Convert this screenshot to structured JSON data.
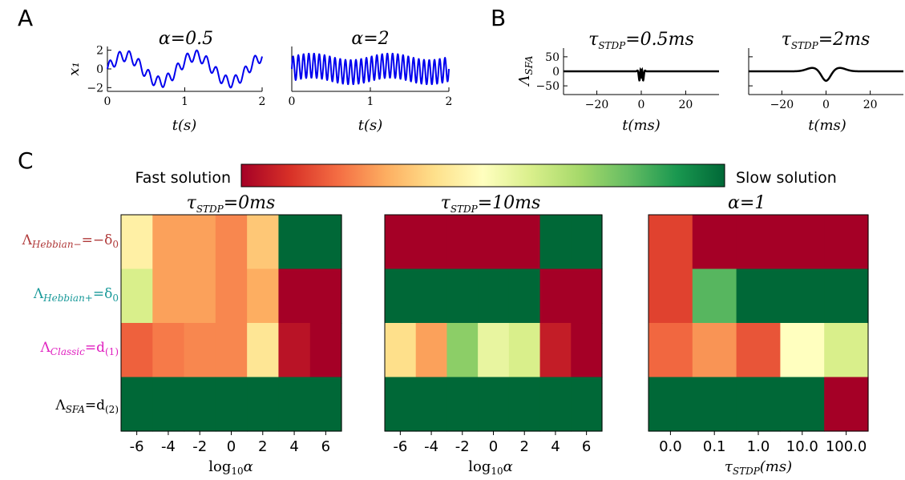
{
  "panels": {
    "A": "A",
    "B": "B",
    "C": "C"
  },
  "colors": {
    "signal": "#0000ee",
    "kernel": "#000000",
    "fast": "#a50026",
    "slow": "#006837"
  },
  "chart_data": [
    {
      "id": "A1",
      "type": "line",
      "title": "α=0.5",
      "xlabel": "t(s)",
      "ylabel": "x₁",
      "xlim": [
        0,
        2
      ],
      "ylim": [
        -2.4,
        2.4
      ],
      "xticks": [
        "0",
        "1",
        "2"
      ],
      "yticks": [
        "2",
        "0",
        "−2"
      ],
      "signal": {
        "slow_amplitude": 1.4,
        "slow_freq_hz": 1.1,
        "fast_amplitude": 0.6,
        "fast_freq_hz": 8
      }
    },
    {
      "id": "A2",
      "type": "line",
      "title": "α=2",
      "xlabel": "t(s)",
      "ylabel": "",
      "xlim": [
        0,
        2
      ],
      "ylim": [
        -2.4,
        2.4
      ],
      "xticks": [
        "0",
        "1",
        "2"
      ],
      "yticks": [],
      "signal": {
        "slow_amplitude": 0.35,
        "slow_freq_hz": 1.0,
        "fast_amplitude": 1.3,
        "fast_freq_hz": 15
      }
    },
    {
      "id": "B1",
      "type": "line",
      "title": "τSTDP=0.5ms",
      "title_main": "τ",
      "title_sub": "STDP",
      "title_rest": "=0.5ms",
      "xlabel": "t(ms)",
      "ylabel": "ΛSFA",
      "ylabel_main": "Λ",
      "ylabel_sub": "SFA",
      "xlim": [
        -35,
        35
      ],
      "ylim": [
        -80,
        80
      ],
      "xticks": [
        "−20",
        "0",
        "20"
      ],
      "yticks": [
        "50",
        "0",
        "−50"
      ],
      "kernel": {
        "tau_ms": 0.5,
        "peak": 70,
        "trough": -80
      }
    },
    {
      "id": "B2",
      "type": "line",
      "title": "τSTDP=2ms",
      "title_main": "τ",
      "title_sub": "STDP",
      "title_rest": "=2ms",
      "xlabel": "t(ms)",
      "ylabel": "",
      "xlim": [
        -35,
        35
      ],
      "ylim": [
        -80,
        80
      ],
      "xticks": [
        "−20",
        "0",
        "20"
      ],
      "yticks": [],
      "kernel": {
        "tau_ms": 2,
        "peak": 12,
        "trough": -34
      }
    },
    {
      "id": "C-colorbar",
      "type": "heatmap",
      "left_label": "Fast solution",
      "right_label": "Slow solution",
      "colormap": "RdYlGn"
    },
    {
      "id": "C1",
      "type": "heatmap",
      "title": "τSTDP=0ms",
      "title_main": "τ",
      "title_sub": "STDP",
      "title_rest": "=0ms",
      "xlabel": "log10α",
      "xlabel_main": "log",
      "xlabel_sub": "10",
      "xlabel_rest": "α",
      "xticks": [
        "-6",
        "-4",
        "-2",
        "0",
        "2",
        "4",
        "6"
      ],
      "cols": 7,
      "rows": [
        [
          0.45,
          0.28,
          0.28,
          0.24,
          0.35,
          1.0,
          1.0
        ],
        [
          0.6,
          0.28,
          0.28,
          0.24,
          0.3,
          0.0,
          0.0
        ],
        [
          0.18,
          0.22,
          0.24,
          0.24,
          0.42,
          0.04,
          0.0
        ],
        [
          1.0,
          1.0,
          1.0,
          1.0,
          1.0,
          1.0,
          1.0
        ]
      ]
    },
    {
      "id": "C2",
      "type": "heatmap",
      "title": "τSTDP=10ms",
      "title_main": "τ",
      "title_sub": "STDP",
      "title_rest": "=10ms",
      "xlabel": "log10α",
      "xlabel_main": "log",
      "xlabel_sub": "10",
      "xlabel_rest": "α",
      "xticks": [
        "-6",
        "-4",
        "-2",
        "0",
        "2",
        "4",
        "6"
      ],
      "cols": 7,
      "rows": [
        [
          0.0,
          0.0,
          0.0,
          0.0,
          0.0,
          1.0,
          1.0
        ],
        [
          1.0,
          1.0,
          1.0,
          1.0,
          1.0,
          0.0,
          0.0
        ],
        [
          0.4,
          0.28,
          0.74,
          0.56,
          0.6,
          0.06,
          0.0
        ],
        [
          1.0,
          1.0,
          1.0,
          1.0,
          1.0,
          1.0,
          1.0
        ]
      ]
    },
    {
      "id": "C3",
      "type": "heatmap",
      "title": "α=1",
      "xlabel": "τSTDP(ms)",
      "xlabel_main": "τ",
      "xlabel_sub": "STDP",
      "xlabel_rest": "(ms)",
      "xticks": [
        "0.0",
        "0.1",
        "1.0",
        "10.0",
        "100.0"
      ],
      "cols": 5,
      "rows": [
        [
          0.13,
          0.0,
          0.0,
          0.0,
          0.0
        ],
        [
          0.13,
          0.82,
          1.0,
          1.0,
          1.0
        ],
        [
          0.19,
          0.26,
          0.16,
          0.5,
          0.6
        ],
        [
          1.0,
          1.0,
          1.0,
          1.0,
          0.0
        ]
      ]
    }
  ],
  "row_labels": [
    {
      "main": "Λ",
      "sub": "Hebbian−",
      "rest": "=−δ",
      "rest_sub": "0",
      "color": "#b03a3a"
    },
    {
      "main": "Λ",
      "sub": "Hebbian+",
      "rest": "=δ",
      "rest_sub": "0",
      "color": "#1a9a9a"
    },
    {
      "main": "Λ",
      "sub": "Classic",
      "rest": "=d",
      "rest_sub": "(1)",
      "color": "#e020c0"
    },
    {
      "main": "Λ",
      "sub": "SFA",
      "rest": "=d",
      "rest_sub": "(2)",
      "color": "#000000"
    }
  ]
}
